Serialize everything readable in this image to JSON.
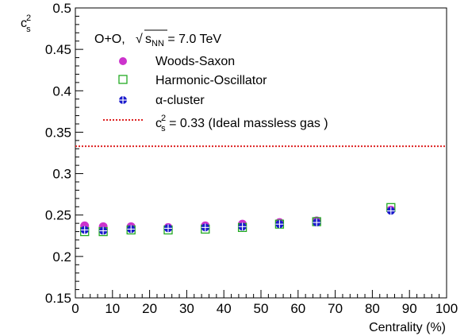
{
  "chart_data": {
    "type": "scatter",
    "title": "",
    "system_label": "O+O,",
    "energy_label": {
      "sqrt": "√",
      "var": "s",
      "sub": "NN",
      "rest": " = 7.0 TeV"
    },
    "xlabel": "Centrality (%)",
    "ylabel": {
      "base": "c",
      "sup": "2",
      "sub": "s"
    },
    "xlim": [
      0,
      100
    ],
    "ylim": [
      0.15,
      0.5
    ],
    "x_ticks": [
      0,
      10,
      20,
      30,
      40,
      50,
      60,
      70,
      80,
      90,
      100
    ],
    "y_ticks": [
      0.15,
      0.2,
      0.25,
      0.3,
      0.35,
      0.4,
      0.45,
      0.5
    ],
    "x_tick_labels": [
      "0",
      "10",
      "20",
      "30",
      "40",
      "50",
      "60",
      "70",
      "80",
      "90",
      "100"
    ],
    "y_tick_labels": [
      "0.15",
      "0.2",
      "0.25",
      "0.3",
      "0.35",
      "0.4",
      "0.45",
      "0.5"
    ],
    "grid": false,
    "legend_position": "top-left",
    "x": [
      2.5,
      7.5,
      15,
      25,
      35,
      45,
      55,
      65,
      85
    ],
    "series": [
      {
        "name": "Woods-Saxon",
        "marker": "filled-circle",
        "color": "#cc33cc",
        "values": [
          0.237,
          0.236,
          0.236,
          0.235,
          0.237,
          0.239,
          0.241,
          0.243,
          0.256
        ]
      },
      {
        "name": "Harmonic-Oscillator",
        "marker": "open-square",
        "color": "#22aa22",
        "values": [
          0.23,
          0.23,
          0.232,
          0.232,
          0.233,
          0.235,
          0.239,
          0.242,
          0.259
        ]
      },
      {
        "name": "α-cluster",
        "marker": "circle-plus",
        "color": "#1a1acc",
        "values": [
          0.232,
          0.231,
          0.233,
          0.234,
          0.235,
          0.236,
          0.239,
          0.241,
          0.255
        ]
      }
    ],
    "reference_line": {
      "value": 0.333,
      "color": "#dd2222",
      "style": "dotted",
      "label": {
        "base": "c",
        "sup": "2",
        "sub": "s",
        "rest": " = 0.33 (Ideal massless gas )"
      }
    }
  }
}
